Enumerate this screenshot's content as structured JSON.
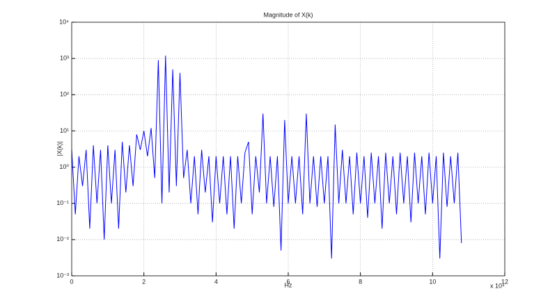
{
  "chart_data": {
    "type": "line",
    "title": "Magnitude of X(k)",
    "x_label": "Hz",
    "y_label": "|X(k)|",
    "x_multiplier": "x 10⁴",
    "log_y": true,
    "grid": true,
    "xlim": [
      0,
      12
    ],
    "xticks": [
      0,
      2,
      4,
      6,
      8,
      10,
      12
    ],
    "ylim": [
      0.001,
      10000
    ],
    "yticks": [
      {
        "value": 0.001,
        "label": "10⁻³"
      },
      {
        "value": 0.01,
        "label": "10⁻²"
      },
      {
        "value": 0.1,
        "label": "10⁻¹"
      },
      {
        "value": 1,
        "label": "10⁰"
      },
      {
        "value": 10,
        "label": "10¹"
      },
      {
        "value": 100,
        "label": "10²"
      },
      {
        "value": 1000,
        "label": "10³"
      },
      {
        "value": 10000,
        "label": "10⁴"
      }
    ],
    "x": [
      0,
      0.1,
      0.2,
      0.3,
      0.4,
      0.5,
      0.6,
      0.7,
      0.8,
      0.9,
      1,
      1.1,
      1.2,
      1.3,
      1.4,
      1.5,
      1.6,
      1.7,
      1.8,
      1.9,
      2,
      2.1,
      2.2,
      2.3,
      2.4,
      2.5,
      2.6,
      2.7,
      2.8,
      2.9,
      3,
      3.1,
      3.2,
      3.3,
      3.4,
      3.5,
      3.6,
      3.7,
      3.8,
      3.9,
      4,
      4.1,
      4.2,
      4.3,
      4.4,
      4.5,
      4.6,
      4.7,
      4.8,
      4.9,
      5,
      5.1,
      5.2,
      5.3,
      5.4,
      5.5,
      5.6,
      5.7,
      5.8,
      5.9,
      6,
      6.1,
      6.2,
      6.3,
      6.4,
      6.5,
      6.6,
      6.7,
      6.8,
      6.9,
      7,
      7.1,
      7.2,
      7.3,
      7.4,
      7.5,
      7.6,
      7.7,
      7.8,
      7.9,
      8,
      8.1,
      8.2,
      8.3,
      8.4,
      8.5,
      8.6,
      8.7,
      8.8,
      8.9,
      9,
      9.1,
      9.2,
      9.3,
      9.4,
      9.5,
      9.6,
      9.7,
      9.8,
      9.9,
      10,
      10.1,
      10.2,
      10.3,
      10.4,
      10.5,
      10.6,
      10.7,
      10.8
    ],
    "series": [
      {
        "color": "#0000ff",
        "values": [
          3,
          0.05,
          2,
          0.3,
          3,
          0.02,
          4,
          0.1,
          3,
          0.01,
          4,
          0.1,
          3,
          0.02,
          5,
          0.2,
          4,
          0.3,
          8,
          3,
          10,
          2,
          12,
          0.5,
          900,
          0.1,
          1200,
          0.2,
          500,
          0.3,
          400,
          0.5,
          3,
          0.1,
          2,
          0.05,
          3,
          0.2,
          2,
          0.03,
          2,
          0.1,
          2,
          0.05,
          2,
          0.02,
          2,
          0.1,
          2.5,
          5,
          0.05,
          2,
          0.2,
          30,
          0.1,
          2,
          0.08,
          2,
          0.005,
          20,
          0.1,
          2,
          0.1,
          2,
          0.05,
          30,
          0.1,
          2,
          0.08,
          2,
          0.1,
          2,
          0.003,
          15,
          0.1,
          3,
          0.1,
          2,
          0.05,
          2.5,
          0.1,
          2,
          0.04,
          2.5,
          0.1,
          2,
          0.02,
          2.5,
          0.1,
          2,
          0.05,
          2.5,
          0.1,
          2,
          0.03,
          2.5,
          0.1,
          2,
          0.05,
          2.5,
          0.1,
          2,
          0.003,
          2.5,
          0.08,
          2,
          0.1,
          2.5,
          0.008
        ]
      }
    ]
  }
}
